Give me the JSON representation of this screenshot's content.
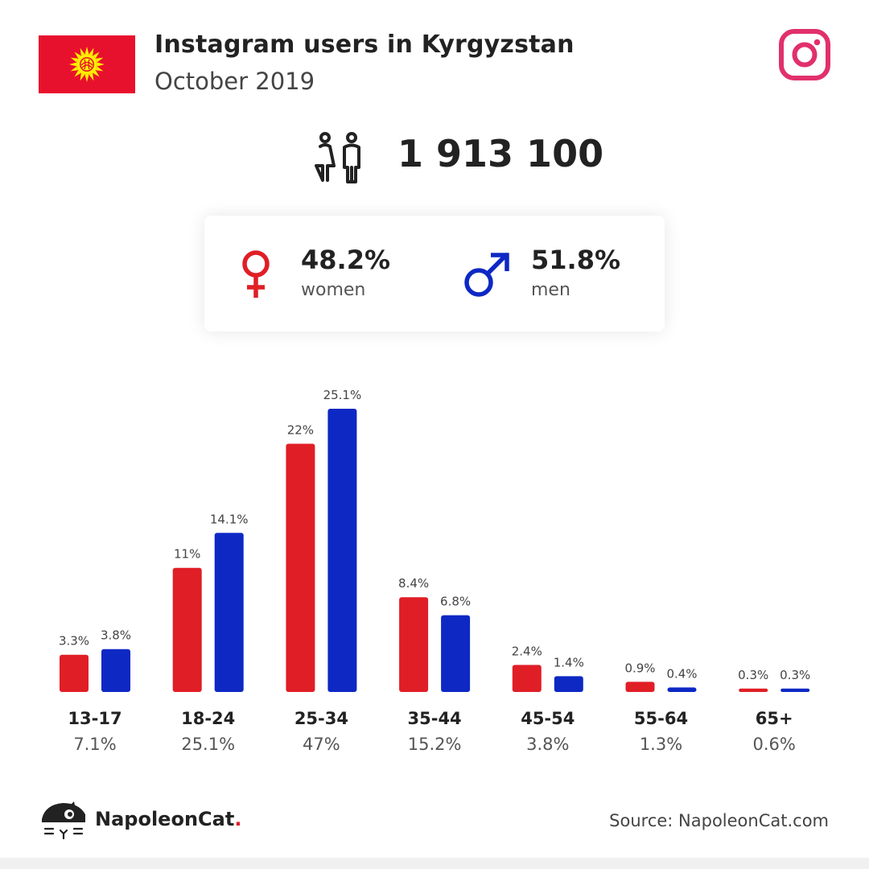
{
  "header": {
    "title": "Instagram users in Kyrgyzstan",
    "subtitle": "October 2019",
    "flag_icon": "kyrgyzstan-flag",
    "platform_icon": "instagram-icon"
  },
  "total": {
    "value": "1 913 100",
    "icon": "users-icon"
  },
  "gender": {
    "women": {
      "pct": "48.2%",
      "label": "women",
      "icon": "female-icon",
      "color": "#e01e26"
    },
    "men": {
      "pct": "51.8%",
      "label": "men",
      "icon": "male-icon",
      "color": "#0e28c4"
    }
  },
  "chart_data": {
    "type": "bar",
    "categories": [
      "13-17",
      "18-24",
      "25-34",
      "35-44",
      "45-54",
      "55-64",
      "65+"
    ],
    "category_totals": [
      "7.1%",
      "25.1%",
      "47%",
      "15.2%",
      "3.8%",
      "1.3%",
      "0.6%"
    ],
    "series": [
      {
        "values": [
          3.3,
          11,
          22,
          8.4,
          2.4,
          0.9,
          0.3
        ],
        "labels": [
          "3.3%",
          "11%",
          "22%",
          "8.4%",
          "2.4%",
          "0.9%",
          "0.3%"
        ],
        "color": "#e01e26"
      },
      {
        "values": [
          3.8,
          14.1,
          25.1,
          6.8,
          1.4,
          0.4,
          0.3
        ],
        "labels": [
          "3.8%",
          "14.1%",
          "25.1%",
          "6.8%",
          "1.4%",
          "0.4%",
          "0.3%"
        ],
        "color": "#0e28c4"
      }
    ],
    "ylim": [
      0,
      25.1
    ],
    "grid": false
  },
  "footer": {
    "brand_name": "NapoleonCat",
    "brand_dot": ".",
    "logo_icon": "napoleoncat-logo",
    "source": "Source: NapoleonCat.com"
  }
}
